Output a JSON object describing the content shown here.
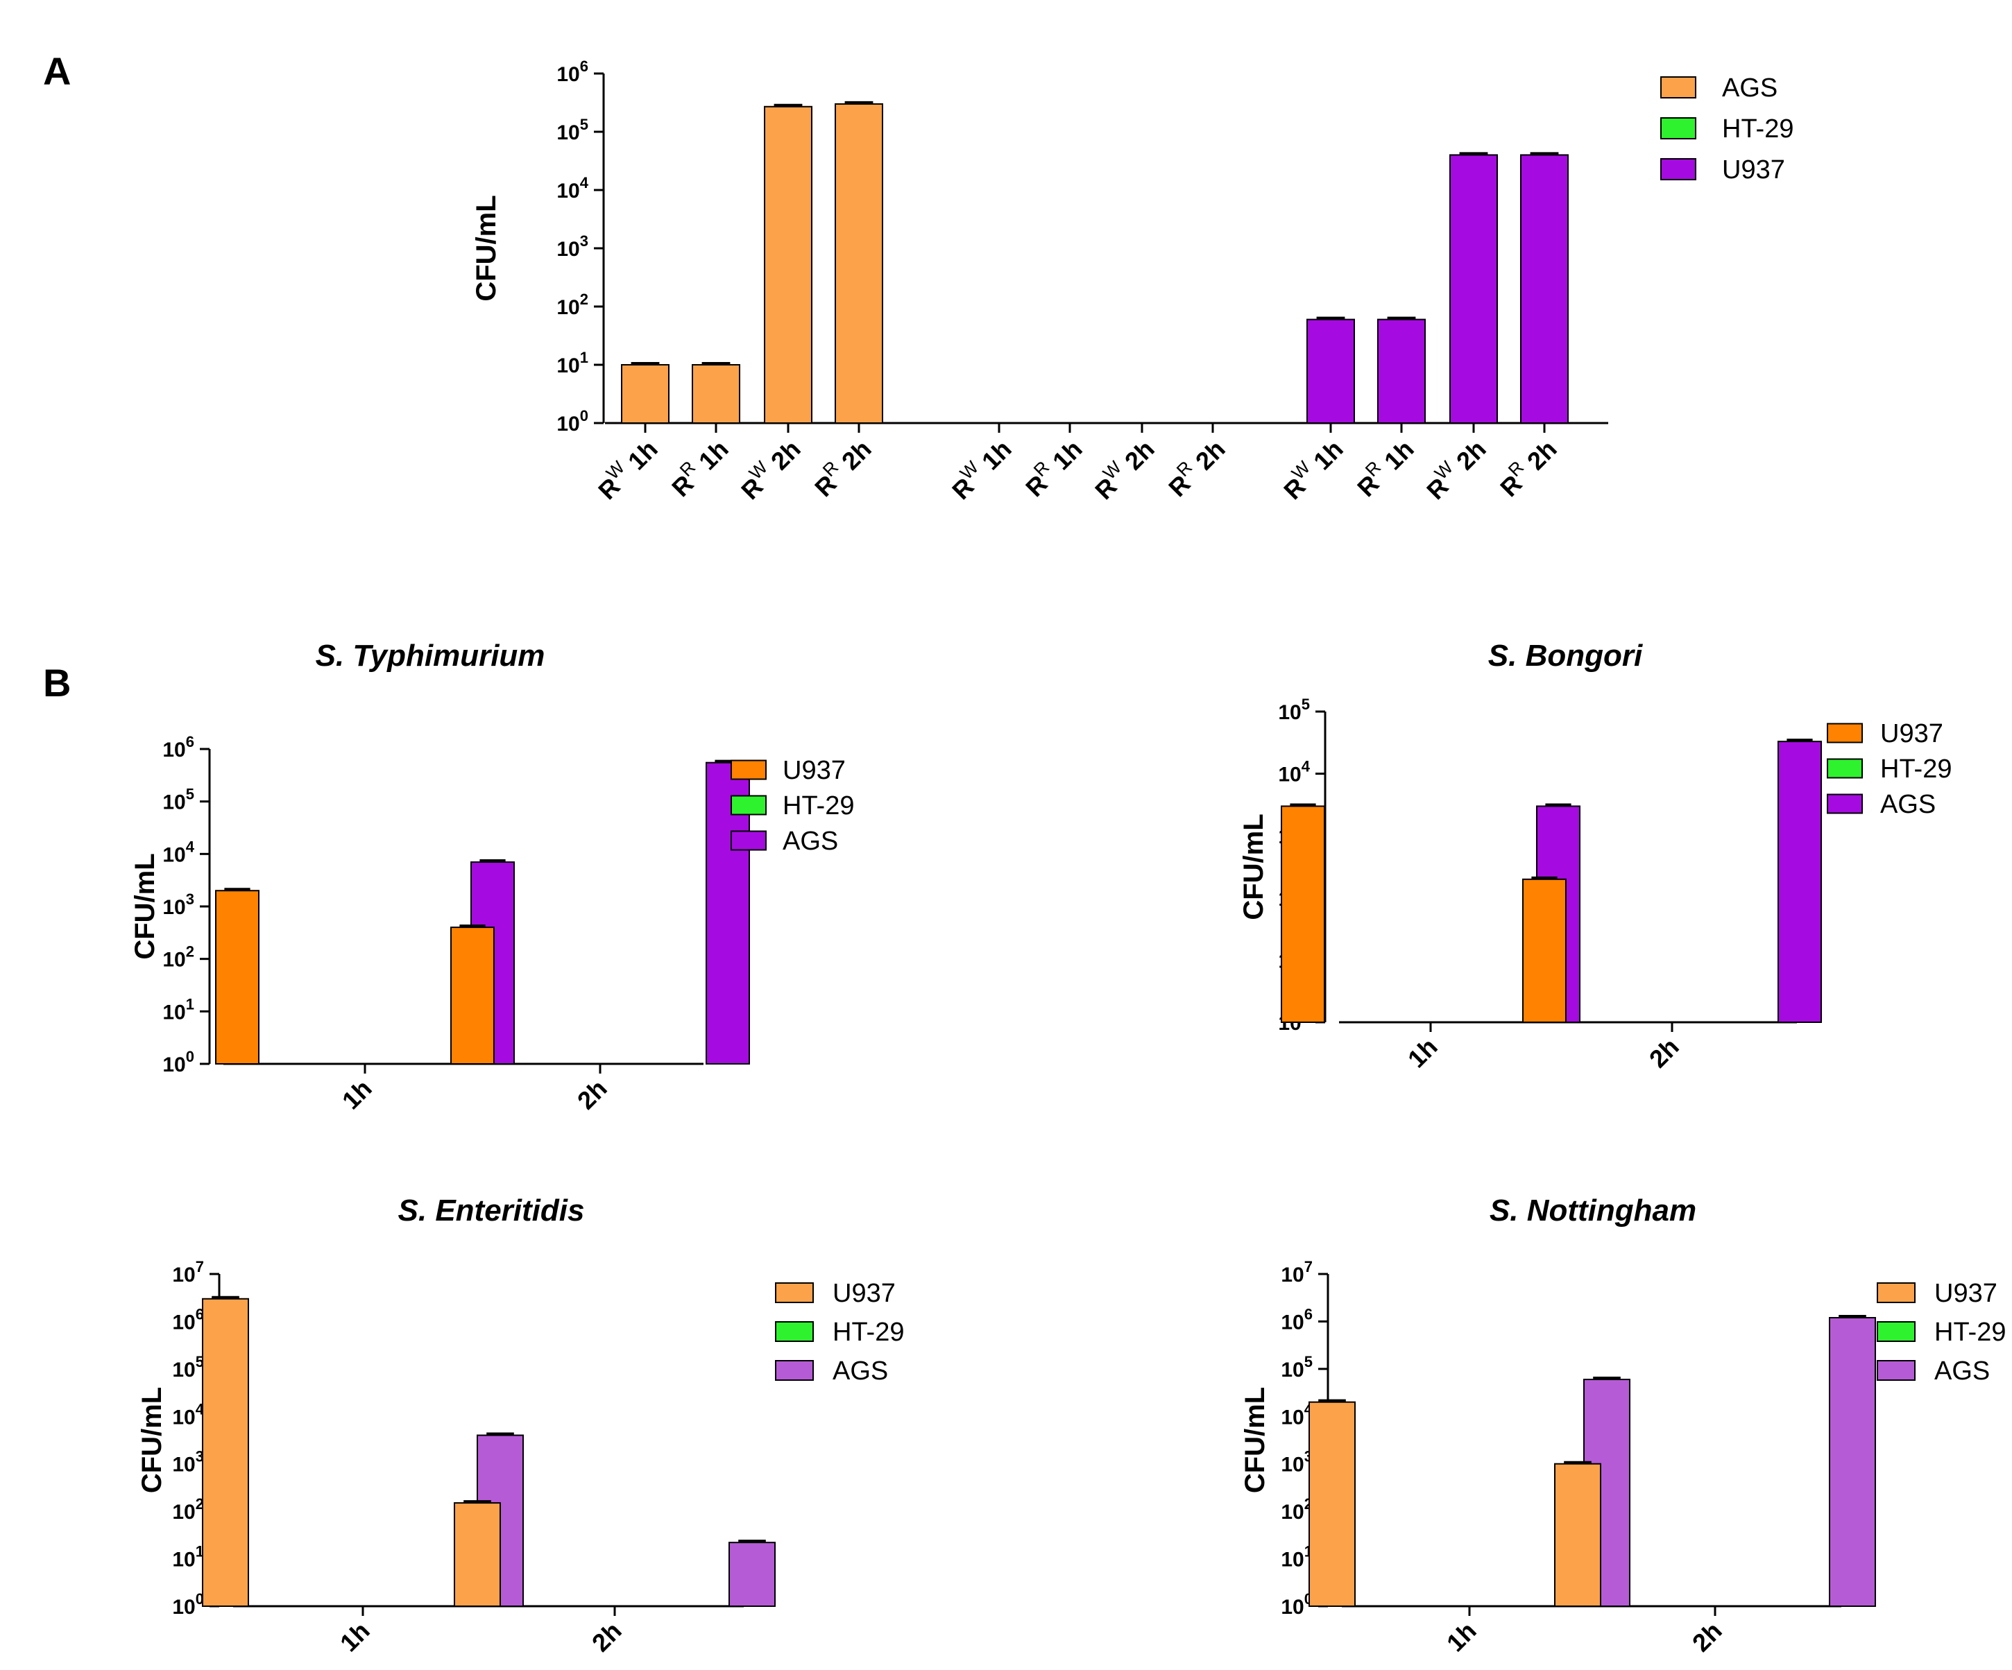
{
  "panels": {
    "A": "A",
    "B": "B"
  },
  "chart_data": [
    {
      "id": "A",
      "type": "bar",
      "title": "",
      "ylabel": "CFU/mL",
      "yscale": "log",
      "ylim_exp": [
        0,
        6
      ],
      "group_labels": [
        [
          {
            "base": "R",
            "sup": "W",
            "tail": " 1h"
          },
          {
            "base": "R",
            "sup": "R",
            "tail": " 1h"
          },
          {
            "base": "R",
            "sup": "W",
            "tail": " 2h"
          },
          {
            "base": "R",
            "sup": "R",
            "tail": " 2h"
          }
        ],
        [
          {
            "base": "R",
            "sup": "W",
            "tail": " 1h"
          },
          {
            "base": "R",
            "sup": "R",
            "tail": " 1h"
          },
          {
            "base": "R",
            "sup": "W",
            "tail": " 2h"
          },
          {
            "base": "R",
            "sup": "R",
            "tail": " 2h"
          }
        ],
        [
          {
            "base": "R",
            "sup": "W",
            "tail": " 1h"
          },
          {
            "base": "R",
            "sup": "R",
            "tail": " 1h"
          },
          {
            "base": "R",
            "sup": "W",
            "tail": " 2h"
          },
          {
            "base": "R",
            "sup": "R",
            "tail": " 2h"
          }
        ]
      ],
      "series": [
        {
          "name": "AGS",
          "color": "#FBA24A",
          "values": [
            10,
            10,
            270000,
            300000
          ]
        },
        {
          "name": "HT-29",
          "color": "#2EF22E",
          "values": [
            0,
            0,
            0,
            0
          ]
        },
        {
          "name": "U937",
          "color": "#A50BE0",
          "values": [
            60,
            60,
            40000,
            40000
          ]
        }
      ],
      "legend": "right"
    },
    {
      "id": "B1",
      "type": "bar",
      "title": "S. Typhimurium",
      "ylabel": "CFU/mL",
      "yscale": "log",
      "ylim_exp": [
        0,
        6
      ],
      "categories": [
        "1h",
        "2h"
      ],
      "series": [
        {
          "name": "U937",
          "color": "#FF8200",
          "values": [
            2000,
            400
          ]
        },
        {
          "name": "HT-29",
          "color": "#2EF22E",
          "values": [
            0,
            0
          ]
        },
        {
          "name": "AGS",
          "color": "#A50BE0",
          "values": [
            7000,
            550000
          ]
        }
      ],
      "legend": "right"
    },
    {
      "id": "B2",
      "type": "bar",
      "title": "S. Bongori",
      "ylabel": "CFU/mL",
      "yscale": "log",
      "ylim_exp": [
        0,
        5
      ],
      "categories": [
        "1h",
        "2h"
      ],
      "series": [
        {
          "name": "U937",
          "color": "#FF8200",
          "values": [
            3000,
            200
          ]
        },
        {
          "name": "HT-29",
          "color": "#2EF22E",
          "values": [
            0,
            0
          ]
        },
        {
          "name": "AGS",
          "color": "#A50BE0",
          "values": [
            3000,
            33000
          ]
        }
      ],
      "legend": "right"
    },
    {
      "id": "B3",
      "type": "bar",
      "title": "S. Enteritidis",
      "ylabel": "CFU/mL",
      "yscale": "log",
      "ylim_exp": [
        0,
        7
      ],
      "categories": [
        "1h",
        "2h"
      ],
      "series": [
        {
          "name": "U937",
          "color": "#FBA24A",
          "values": [
            3000000,
            150
          ]
        },
        {
          "name": "HT-29",
          "color": "#2EF22E",
          "values": [
            0,
            0
          ]
        },
        {
          "name": "AGS",
          "color": "#B65BD6",
          "values": [
            4000,
            22
          ]
        }
      ],
      "legend": "right"
    },
    {
      "id": "B4",
      "type": "bar",
      "title": "S. Nottingham",
      "ylabel": "CFU/mL",
      "yscale": "log",
      "ylim_exp": [
        0,
        7
      ],
      "categories": [
        "1h",
        "2h"
      ],
      "series": [
        {
          "name": "U937",
          "color": "#FBA24A",
          "values": [
            20000,
            1000
          ]
        },
        {
          "name": "HT-29",
          "color": "#2EF22E",
          "values": [
            0,
            0
          ]
        },
        {
          "name": "AGS",
          "color": "#B65BD6",
          "values": [
            60000,
            1200000
          ]
        }
      ],
      "legend": "right"
    }
  ]
}
